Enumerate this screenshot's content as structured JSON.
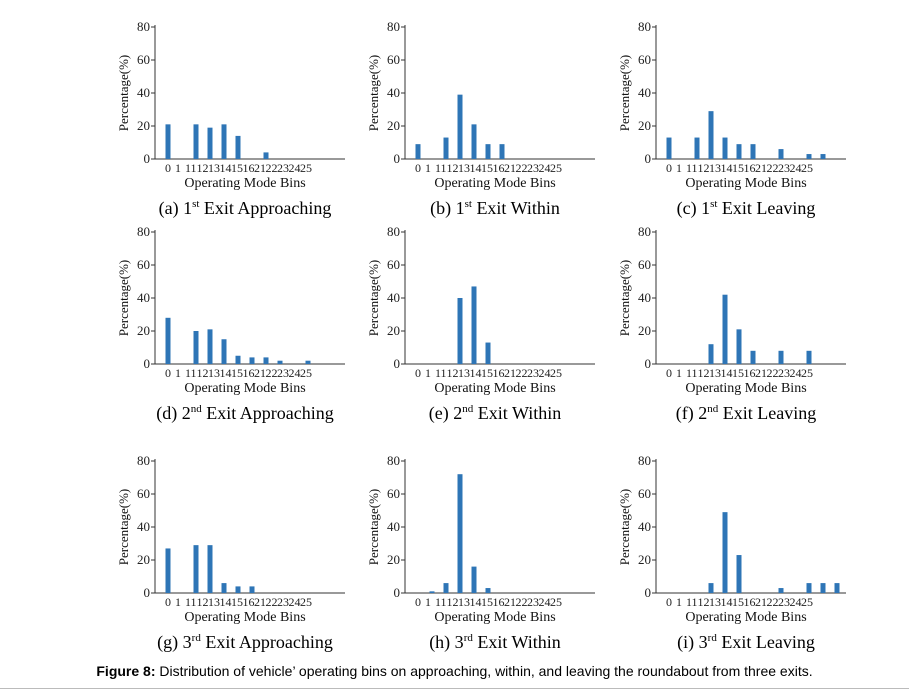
{
  "figure": {
    "caption_label": "Figure 8:",
    "caption_text": " Distribution of vehicle’ operating bins on approaching, within, and leaving the roundabout from three exits."
  },
  "colors": {
    "bar": "#2e75b6",
    "axis": "#333333"
  },
  "chart_data": [
    {
      "type": "bar",
      "title": "(a) 1st Exit Approaching",
      "ylabel": "Percentage(%)",
      "xlabel": "Operating Mode Bins",
      "ylim": [
        0,
        80
      ],
      "yticks": [
        0,
        20,
        40,
        60,
        80
      ],
      "categories": [
        "0",
        "1",
        "11",
        "12",
        "13",
        "14",
        "15",
        "16",
        "21",
        "22",
        "23",
        "24",
        "25"
      ],
      "values": [
        21,
        0,
        21,
        19,
        21,
        14,
        0,
        4,
        0,
        0,
        0,
        0,
        0
      ]
    },
    {
      "type": "bar",
      "title": "(b) 1st Exit Within",
      "ylabel": "Percentage(%)",
      "xlabel": "Operating Mode Bins",
      "ylim": [
        0,
        80
      ],
      "yticks": [
        0,
        20,
        40,
        60,
        80
      ],
      "categories": [
        "0",
        "1",
        "11",
        "12",
        "13",
        "14",
        "15",
        "16",
        "21",
        "22",
        "23",
        "24",
        "25"
      ],
      "values": [
        9,
        0,
        13,
        39,
        21,
        9,
        9,
        0,
        0,
        0,
        0,
        0,
        0
      ]
    },
    {
      "type": "bar",
      "title": "(c) 1st Exit Leaving",
      "ylabel": "Percentage(%)",
      "xlabel": "Operating Mode Bins",
      "ylim": [
        0,
        80
      ],
      "yticks": [
        0,
        20,
        40,
        60,
        80
      ],
      "categories": [
        "0",
        "1",
        "11",
        "12",
        "13",
        "14",
        "15",
        "16",
        "21",
        "22",
        "23",
        "24",
        "25"
      ],
      "values": [
        13,
        0,
        13,
        29,
        13,
        9,
        9,
        0,
        6,
        0,
        3,
        3,
        0
      ]
    },
    {
      "type": "bar",
      "title": "(d) 2nd Exit Approaching",
      "ylabel": "Percentage(%)",
      "xlabel": "Operating Mode Bins",
      "ylim": [
        0,
        80
      ],
      "yticks": [
        0,
        20,
        40,
        60,
        80
      ],
      "categories": [
        "0",
        "1",
        "11",
        "12",
        "13",
        "14",
        "15",
        "16",
        "21",
        "22",
        "23",
        "24",
        "25"
      ],
      "values": [
        28,
        0,
        20,
        21,
        15,
        5,
        4,
        4,
        2,
        0,
        2,
        0,
        0
      ]
    },
    {
      "type": "bar",
      "title": "(e) 2nd Exit Within",
      "ylabel": "Percentage(%)",
      "xlabel": "Operating Mode Bins",
      "ylim": [
        0,
        80
      ],
      "yticks": [
        0,
        20,
        40,
        60,
        80
      ],
      "categories": [
        "0",
        "1",
        "11",
        "12",
        "13",
        "14",
        "15",
        "16",
        "21",
        "22",
        "23",
        "24",
        "25"
      ],
      "values": [
        0,
        0,
        0,
        40,
        47,
        13,
        0,
        0,
        0,
        0,
        0,
        0,
        0
      ]
    },
    {
      "type": "bar",
      "title": "(f) 2nd Exit Leaving",
      "ylabel": "Percentage(%)",
      "xlabel": "Operating Mode Bins",
      "ylim": [
        0,
        80
      ],
      "yticks": [
        0,
        20,
        40,
        60,
        80
      ],
      "categories": [
        "0",
        "1",
        "11",
        "12",
        "13",
        "14",
        "15",
        "16",
        "21",
        "22",
        "23",
        "24",
        "25"
      ],
      "values": [
        0,
        0,
        0,
        12,
        42,
        21,
        8,
        0,
        8,
        0,
        8,
        0,
        0
      ]
    },
    {
      "type": "bar",
      "title": "(g) 3rd Exit Approaching",
      "ylabel": "Percentage(%)",
      "xlabel": "Operating Mode Bins",
      "ylim": [
        0,
        80
      ],
      "yticks": [
        0,
        20,
        40,
        60,
        80
      ],
      "categories": [
        "0",
        "1",
        "11",
        "12",
        "13",
        "14",
        "15",
        "16",
        "21",
        "22",
        "23",
        "24",
        "25"
      ],
      "values": [
        27,
        0,
        29,
        29,
        6,
        4,
        4,
        0,
        0,
        0,
        0,
        0,
        0
      ]
    },
    {
      "type": "bar",
      "title": "(h) 3rd Exit Within",
      "ylabel": "Percentage(%)",
      "xlabel": "Operating Mode Bins",
      "ylim": [
        0,
        80
      ],
      "yticks": [
        0,
        20,
        40,
        60,
        80
      ],
      "categories": [
        "0",
        "1",
        "11",
        "12",
        "13",
        "14",
        "15",
        "16",
        "21",
        "22",
        "23",
        "24",
        "25"
      ],
      "values": [
        0,
        1,
        6,
        72,
        16,
        3,
        0,
        0,
        0,
        0,
        0,
        0,
        0
      ]
    },
    {
      "type": "bar",
      "title": "(i) 3rd Exit Leaving",
      "ylabel": "Percentage(%)",
      "xlabel": "Operating Mode Bins",
      "ylim": [
        0,
        80
      ],
      "yticks": [
        0,
        20,
        40,
        60,
        80
      ],
      "categories": [
        "0",
        "1",
        "11",
        "12",
        "13",
        "14",
        "15",
        "16",
        "21",
        "22",
        "23",
        "24",
        "25"
      ],
      "values": [
        0,
        0,
        0,
        6,
        49,
        23,
        0,
        0,
        3,
        0,
        6,
        6,
        6
      ]
    }
  ],
  "panel_titles": [
    {
      "prefix": "(a) 1",
      "sup": "st",
      "suffix": " Exit Approaching"
    },
    {
      "prefix": "(b) 1",
      "sup": "st",
      "suffix": " Exit Within"
    },
    {
      "prefix": "(c) 1",
      "sup": "st",
      "suffix": " Exit Leaving"
    },
    {
      "prefix": "(d) 2",
      "sup": "nd",
      "suffix": " Exit Approaching"
    },
    {
      "prefix": "(e) 2",
      "sup": "nd",
      "suffix": " Exit Within"
    },
    {
      "prefix": "(f) 2",
      "sup": "nd",
      "suffix": " Exit Leaving"
    },
    {
      "prefix": "(g) 3",
      "sup": "rd",
      "suffix": " Exit Approaching"
    },
    {
      "prefix": "(h) 3",
      "sup": "rd",
      "suffix": " Exit Within"
    },
    {
      "prefix": "(i) 3",
      "sup": "rd",
      "suffix": " Exit Leaving"
    }
  ],
  "xtick_strip": "0 1 111213141516212223242 5"
}
